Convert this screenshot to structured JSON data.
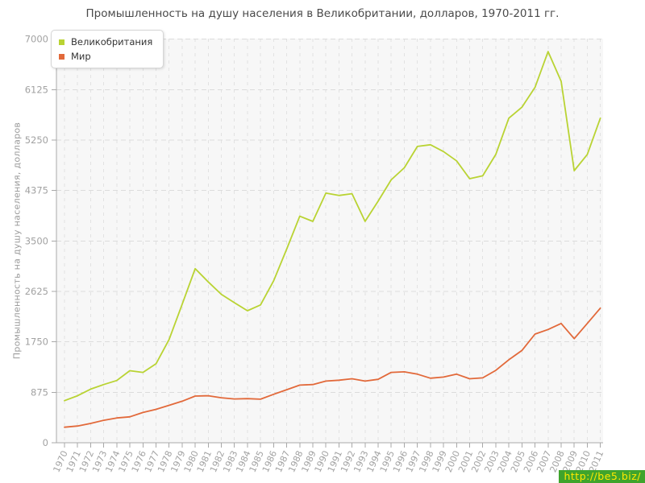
{
  "header": {
    "title": "Промышленность на душу населения в Великобритании, долларов, 1970-2011 гг."
  },
  "watermark": {
    "text": "http://be5.biz/",
    "bg": "#3fa42c",
    "fg": "#ffe800"
  },
  "chart_data": {
    "type": "line",
    "title": "Промышленность на душу населения в Великобритании, долларов, 1970-2011 гг.",
    "xlabel": "",
    "ylabel": "Промышленность на душу населения, долларов",
    "ylim": [
      0,
      7000
    ],
    "yticks": [
      0,
      875,
      1750,
      2625,
      3500,
      4375,
      5250,
      6125,
      7000
    ],
    "grid": true,
    "legend_position": "top-left",
    "x": [
      1970,
      1971,
      1972,
      1973,
      1974,
      1975,
      1976,
      1977,
      1978,
      1979,
      1980,
      1981,
      1982,
      1983,
      1984,
      1985,
      1986,
      1987,
      1988,
      1989,
      1990,
      1991,
      1992,
      1993,
      1994,
      1995,
      1996,
      1997,
      1998,
      1999,
      2000,
      2001,
      2002,
      2003,
      2004,
      2005,
      2006,
      2007,
      2008,
      2009,
      2010,
      2011
    ],
    "series": [
      {
        "name": "Великобритания",
        "color": "#b9d333",
        "values": [
          730,
          815,
          930,
          1010,
          1080,
          1250,
          1220,
          1370,
          1790,
          2400,
          3020,
          2790,
          2575,
          2430,
          2290,
          2390,
          2810,
          3360,
          3930,
          3840,
          4330,
          4290,
          4320,
          3840,
          4190,
          4560,
          4770,
          5140,
          5170,
          5050,
          4890,
          4580,
          4630,
          5000,
          5630,
          5820,
          6165,
          6785,
          6270,
          4720,
          5000,
          5630
        ]
      },
      {
        "name": "Мир",
        "color": "#e2693a",
        "values": [
          270,
          290,
          335,
          390,
          430,
          450,
          525,
          580,
          650,
          720,
          810,
          815,
          780,
          760,
          765,
          755,
          840,
          920,
          1000,
          1010,
          1070,
          1085,
          1110,
          1070,
          1100,
          1220,
          1230,
          1190,
          1120,
          1140,
          1190,
          1110,
          1125,
          1255,
          1440,
          1600,
          1885,
          1965,
          2070,
          1805,
          2070,
          2335
        ]
      }
    ]
  }
}
